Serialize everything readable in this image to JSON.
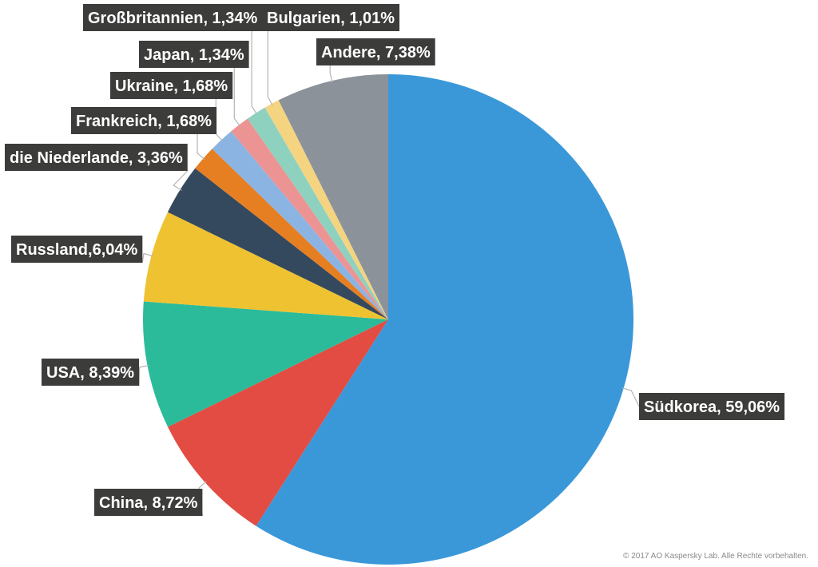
{
  "chart_data": {
    "type": "pie",
    "slices": [
      {
        "label": "Südkorea, 59,06%",
        "value": 59.06,
        "color": "#3a98d9"
      },
      {
        "label": "China, 8,72%",
        "value": 8.72,
        "color": "#e24c42"
      },
      {
        "label": "USA, 8,39%",
        "value": 8.39,
        "color": "#2bbb9a"
      },
      {
        "label": "Russland,6,04%",
        "value": 6.04,
        "color": "#eec231"
      },
      {
        "label": "die Niederlande, 3,36%",
        "value": 3.36,
        "color": "#34495e"
      },
      {
        "label": "Frankreich, 1,68%",
        "value": 1.68,
        "color": "#e67e22"
      },
      {
        "label": "Ukraine, 1,68%",
        "value": 1.68,
        "color": "#8cb4e2"
      },
      {
        "label": "Japan, 1,34%",
        "value": 1.34,
        "color": "#ec9493"
      },
      {
        "label": "Großbritannien, 1,34%",
        "value": 1.34,
        "color": "#8fd1bf"
      },
      {
        "label": "Bulgarien, 1,01%",
        "value": 1.01,
        "color": "#f4d481"
      },
      {
        "label": "Andere, 7,38%",
        "value": 7.38,
        "color": "#8c9299"
      }
    ],
    "start": "12 o'clock",
    "direction": "clockwise"
  },
  "copyright": "© 2017 AO Kaspersky Lab. Alle Rechte vorbehalten."
}
